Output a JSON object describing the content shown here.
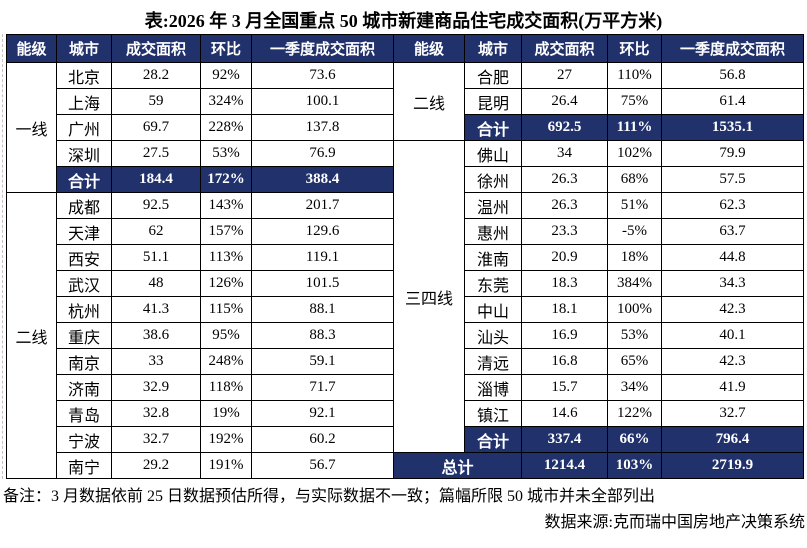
{
  "title": "表:2026 年 3 月全国重点 50 城市新建商品住宅成交面积(万平方米)",
  "colors": {
    "header_bg": "#21316B",
    "header_text": "#FFFFFF",
    "border": "#000000",
    "page_bg": "#FFFFFF",
    "body_text": "#000000"
  },
  "table": {
    "columns": [
      "能级",
      "城市",
      "成交面积",
      "环比",
      "一季度成交面积"
    ],
    "halves": [
      {
        "name": "left",
        "blocks": [
          {
            "tier": "一线",
            "rows": [
              [
                "北京",
                "28.2",
                "92%",
                "73.6"
              ],
              [
                "上海",
                "59",
                "324%",
                "100.1"
              ],
              [
                "广州",
                "69.7",
                "228%",
                "137.8"
              ],
              [
                "深圳",
                "27.5",
                "53%",
                "76.9"
              ]
            ],
            "subtotal": [
              "合计",
              "184.4",
              "172%",
              "388.4"
            ]
          },
          {
            "tier": "二线",
            "rows": [
              [
                "成都",
                "92.5",
                "143%",
                "201.7"
              ],
              [
                "天津",
                "62",
                "157%",
                "129.6"
              ],
              [
                "西安",
                "51.1",
                "113%",
                "119.1"
              ],
              [
                "武汉",
                "48",
                "126%",
                "101.5"
              ],
              [
                "杭州",
                "41.3",
                "115%",
                "88.1"
              ],
              [
                "重庆",
                "38.6",
                "95%",
                "88.3"
              ],
              [
                "南京",
                "33",
                "248%",
                "59.1"
              ],
              [
                "济南",
                "32.9",
                "118%",
                "71.7"
              ],
              [
                "青岛",
                "32.8",
                "19%",
                "92.1"
              ],
              [
                "宁波",
                "32.7",
                "192%",
                "60.2"
              ],
              [
                "南宁",
                "29.2",
                "191%",
                "56.7"
              ]
            ],
            "subtotal": null
          }
        ],
        "grand_total": null
      },
      {
        "name": "right",
        "blocks": [
          {
            "tier": "二线",
            "rows": [
              [
                "合肥",
                "27",
                "110%",
                "56.8"
              ],
              [
                "昆明",
                "26.4",
                "75%",
                "61.4"
              ]
            ],
            "subtotal": [
              "合计",
              "692.5",
              "111%",
              "1535.1"
            ]
          },
          {
            "tier": "三四线",
            "rows": [
              [
                "佛山",
                "34",
                "102%",
                "79.9"
              ],
              [
                "徐州",
                "26.3",
                "68%",
                "57.5"
              ],
              [
                "温州",
                "26.3",
                "51%",
                "62.3"
              ],
              [
                "惠州",
                "23.3",
                "-5%",
                "63.7"
              ],
              [
                "淮南",
                "20.9",
                "18%",
                "44.8"
              ],
              [
                "东莞",
                "18.3",
                "384%",
                "34.3"
              ],
              [
                "中山",
                "18.1",
                "100%",
                "42.3"
              ],
              [
                "汕头",
                "16.9",
                "53%",
                "40.1"
              ],
              [
                "清远",
                "16.8",
                "65%",
                "42.3"
              ],
              [
                "淄博",
                "15.7",
                "34%",
                "41.9"
              ],
              [
                "镇江",
                "14.6",
                "122%",
                "32.7"
              ]
            ],
            "subtotal": [
              "合计",
              "337.4",
              "66%",
              "796.4"
            ]
          }
        ],
        "grand_total": [
          "总计",
          "1214.4",
          "103%",
          "2719.9"
        ]
      }
    ]
  },
  "footer": {
    "note": "备注：3 月数据依前 25 日数据预估所得，与实际数据不一致；篇幅所限 50 城市并未全部列出",
    "source": "数据来源:克而瑞中国房地产决策系统"
  }
}
